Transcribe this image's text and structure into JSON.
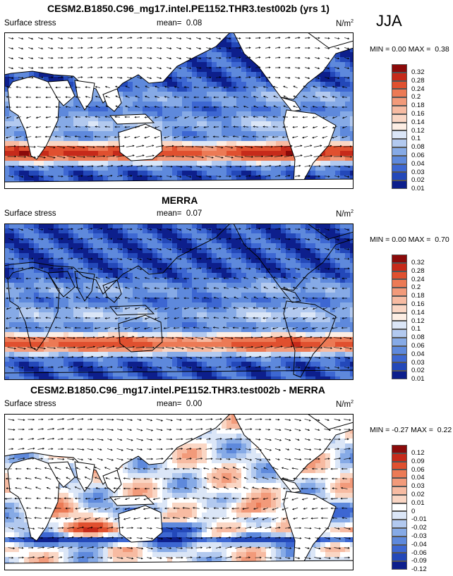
{
  "season": "JJA",
  "chart_data": [
    {
      "type": "heatmap",
      "title": "CESM2.B1850.C96_mg17.intel.PE1152.THR3.test002b (yrs 1)",
      "variable": "Surface stress",
      "mean_label": "mean=",
      "mean": "0.08",
      "units": "N/m",
      "units_exp": "2",
      "min_label": "MIN =",
      "min": "0.00",
      "max_label": "MAX =",
      "max": "0.38",
      "levels": [
        "0.32",
        "0.28",
        "0.24",
        "0.2",
        "0.18",
        "0.16",
        "0.14",
        "0.12",
        "0.1",
        "0.08",
        "0.06",
        "0.04",
        "0.03",
        "0.02",
        "0.01"
      ],
      "colors": [
        "#8b0a0a",
        "#c62a1a",
        "#e0502f",
        "#ec7a55",
        "#f29a7a",
        "#f7bba2",
        "#fad6c4",
        "#fdeee4",
        "#dbe6f7",
        "#b2c9ef",
        "#86aae6",
        "#5e89dc",
        "#3d67d2",
        "#2348b9",
        "#0d1f8c"
      ],
      "vectors": true
    },
    {
      "type": "heatmap",
      "title": "MERRA",
      "variable": "Surface stress",
      "mean_label": "mean=",
      "mean": "0.07",
      "units": "N/m",
      "units_exp": "2",
      "min_label": "MIN =",
      "min": "0.00",
      "max_label": "MAX =",
      "max": "0.70",
      "levels": [
        "0.32",
        "0.28",
        "0.24",
        "0.2",
        "0.18",
        "0.16",
        "0.14",
        "0.12",
        "0.1",
        "0.08",
        "0.06",
        "0.04",
        "0.03",
        "0.02",
        "0.01"
      ],
      "colors": [
        "#8b0a0a",
        "#c62a1a",
        "#e0502f",
        "#ec7a55",
        "#f29a7a",
        "#f7bba2",
        "#fad6c4",
        "#fdeee4",
        "#dbe6f7",
        "#b2c9ef",
        "#86aae6",
        "#5e89dc",
        "#3d67d2",
        "#2348b9",
        "#0d1f8c"
      ],
      "vectors": true
    },
    {
      "type": "heatmap",
      "title": "CESM2.B1850.C96_mg17.intel.PE1152.THR3.test002b - MERRA",
      "variable": "Surface stress",
      "mean_label": "mean=",
      "mean": "0.00",
      "units": "N/m",
      "units_exp": "2",
      "min_label": "MIN =",
      "min": "-0.27",
      "max_label": "MAX =",
      "max": "0.22",
      "levels": [
        "0.12",
        "0.09",
        "0.06",
        "0.04",
        "0.03",
        "0.02",
        "0.01",
        "0",
        "-0.01",
        "-0.02",
        "-0.03",
        "-0.04",
        "-0.06",
        "-0.09",
        "-0.12"
      ],
      "colors": [
        "#8b0a0a",
        "#c62a1a",
        "#e0502f",
        "#ec7a55",
        "#f29a7a",
        "#f7bba2",
        "#fad6c4",
        "#ffffff",
        "#dbe6f7",
        "#b2c9ef",
        "#86aae6",
        "#5e89dc",
        "#3d67d2",
        "#2348b9",
        "#0d1f8c"
      ],
      "vectors": true
    }
  ]
}
